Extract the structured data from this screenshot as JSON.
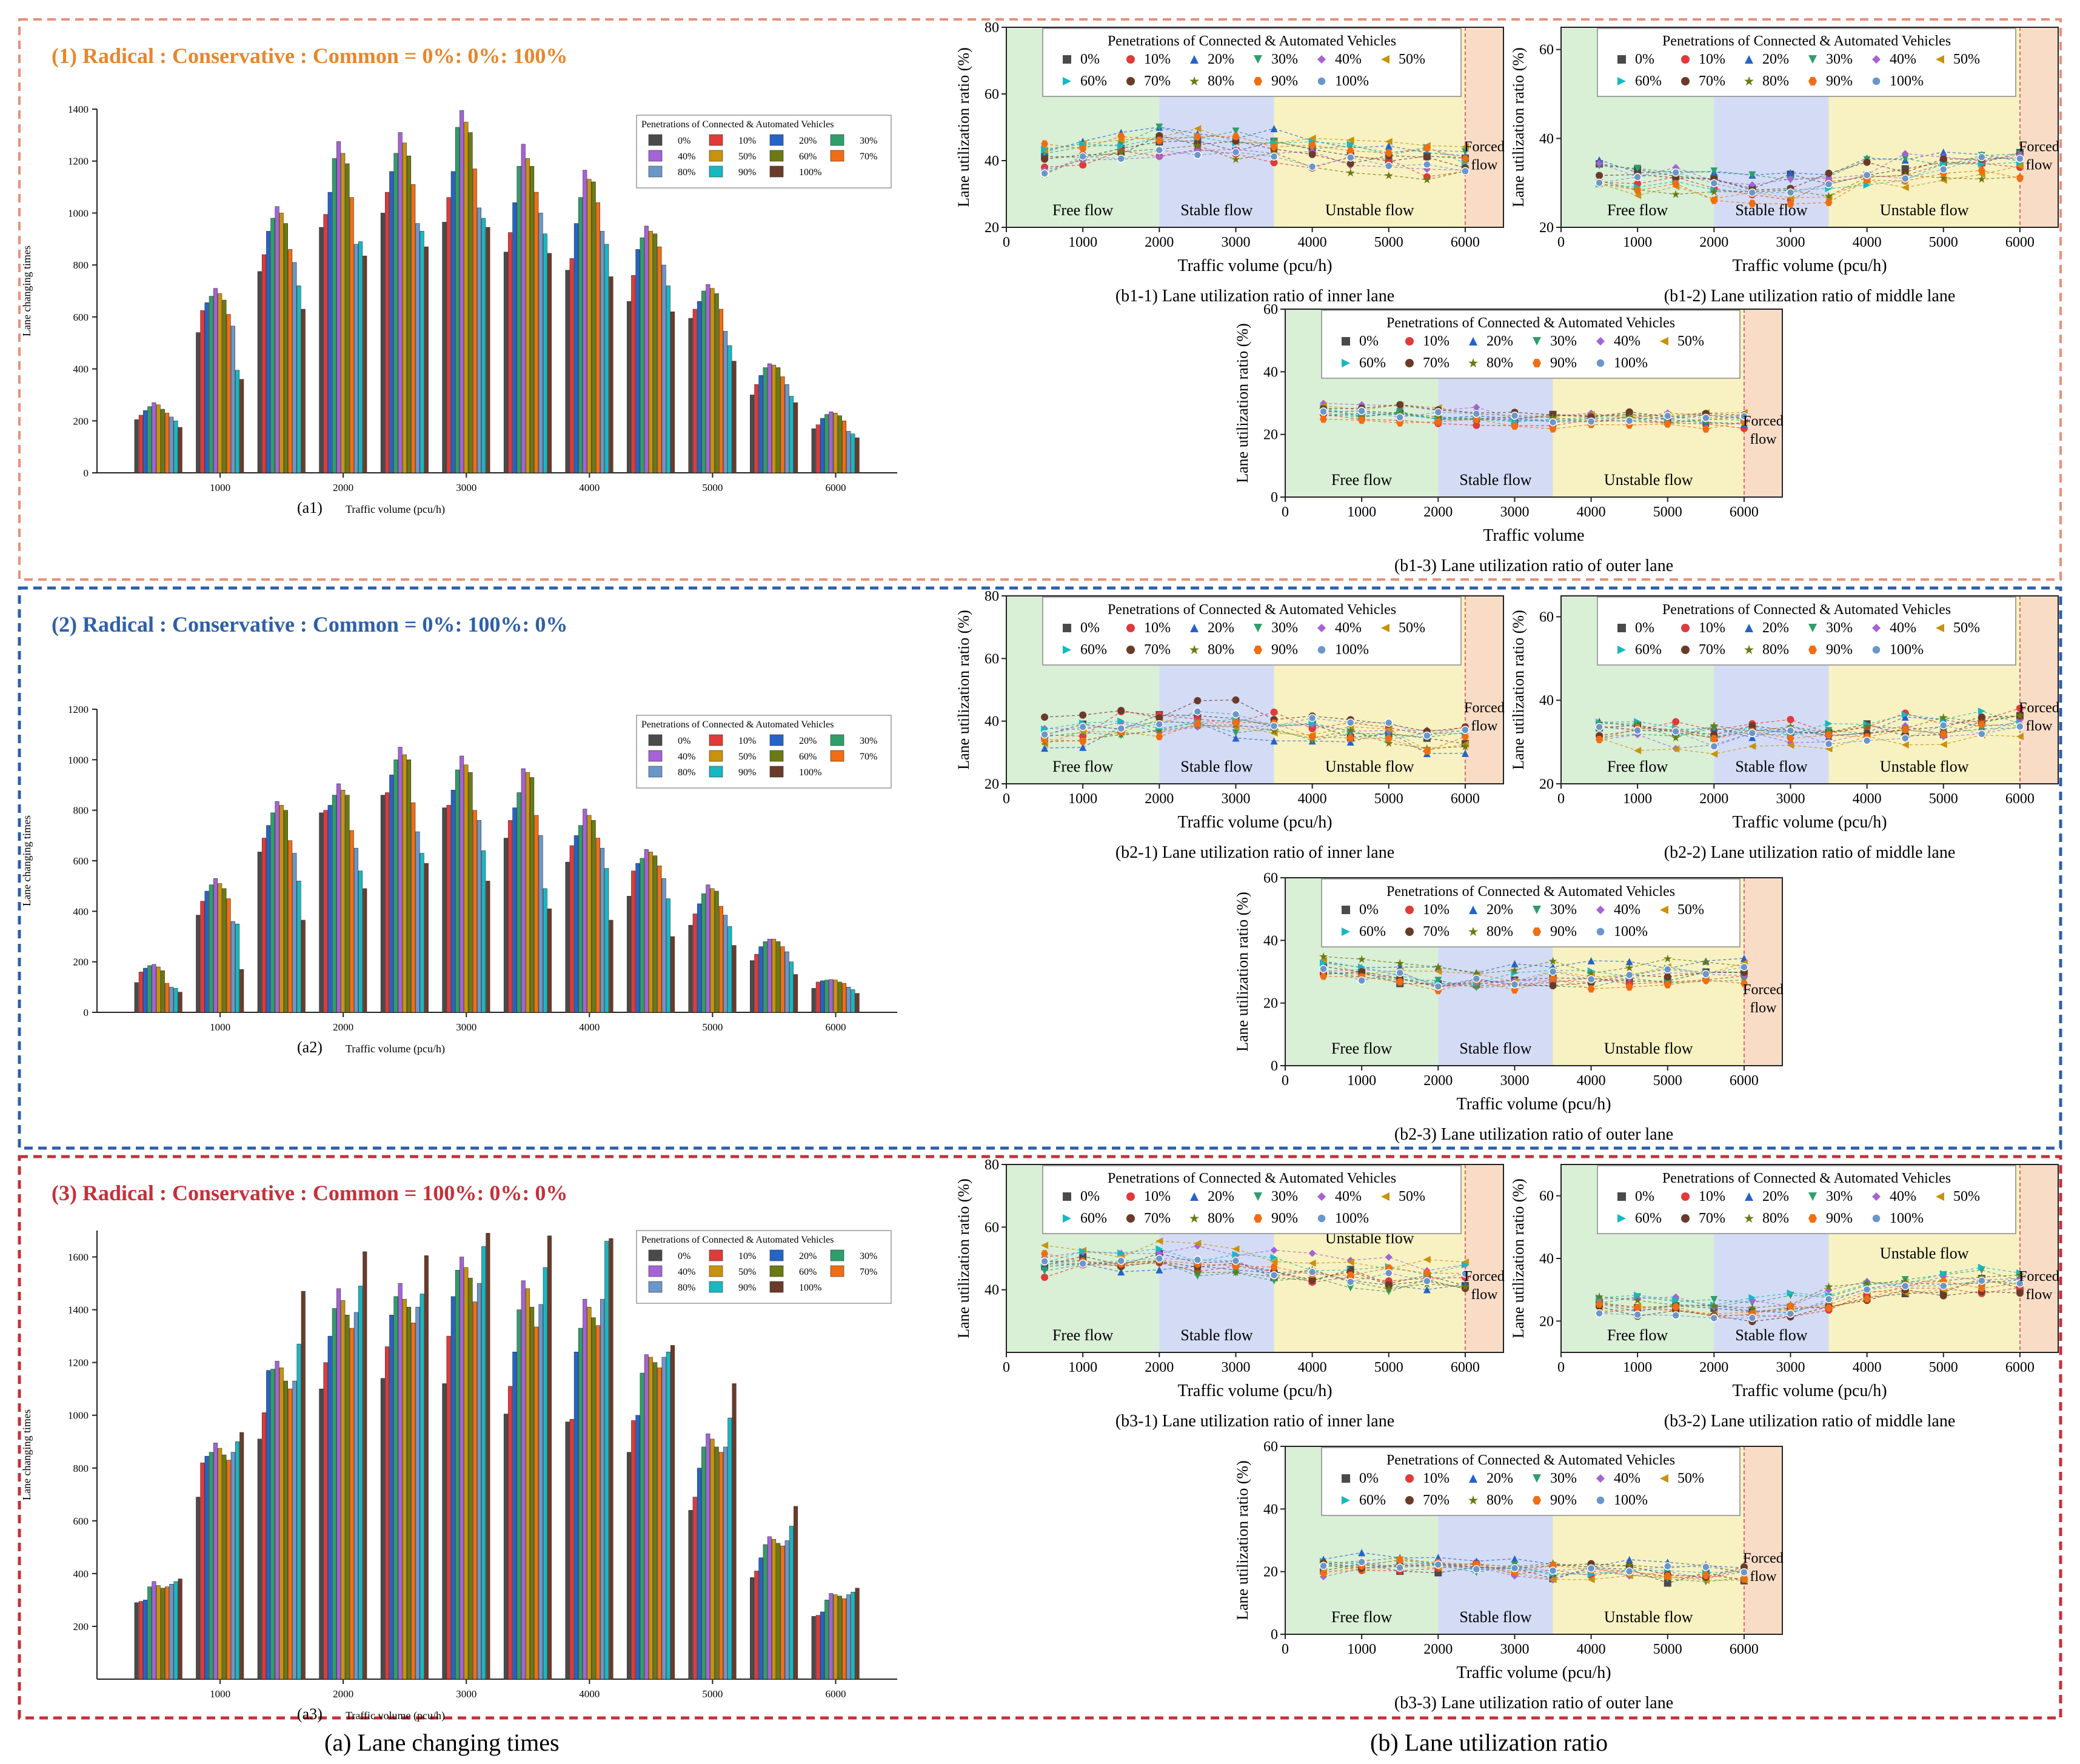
{
  "colors": {
    "series": [
      "#4a4a4a",
      "#e03a3a",
      "#2563c9",
      "#2f9e6b",
      "#a563d6",
      "#c9920c",
      "#6b7a12",
      "#f26d12",
      "#6b96c9",
      "#18b8c2",
      "#6b3b2a"
    ],
    "penetration_order_colors": [
      "#4a4a4a",
      "#e03a3a",
      "#2563c9",
      "#2f9e6b",
      "#a563d6",
      "#c9920c",
      "#18b8c2",
      "#6b3b2a",
      "#6b7a12",
      "#f26d12",
      "#6b96c9"
    ],
    "free_flow": "#d9efd6",
    "stable_flow": "#d4dcf5",
    "unstable_flow": "#f8f2c2",
    "forced_flow": "#f9dcc6",
    "frame1": "#e8907a",
    "frame2": "#2e5fa8",
    "frame3": "#c7303a",
    "title1": "#e8862a",
    "title2": "#2e5fa8",
    "title3": "#c7303a"
  },
  "scenarios": [
    {
      "title": "(1) Radical : Conservative : Common = 0%: 0%: 100%"
    },
    {
      "title": "(2) Radical : Conservative : Common = 0%: 100%: 0%"
    },
    {
      "title": "(3) Radical : Conservative : Common = 100%: 0%: 0%"
    }
  ],
  "bottom_labels": {
    "a": "(a)  Lane changing times",
    "b": "(b)  Lane utilization ratio"
  },
  "flow_labels": {
    "free": "Free flow",
    "stable": "Stable flow",
    "unstable": "Unstable flow",
    "forced_1": "Forced",
    "forced_2": "flow"
  },
  "chart_data": [
    {
      "id": "a1",
      "type": "bar",
      "caption": "(a1)",
      "xlabel": "Traffic volume (pcu/h)",
      "ylabel": "Lane changing times",
      "ylim": [
        0,
        1400
      ],
      "yticks": [
        0,
        200,
        400,
        600,
        800,
        1000,
        1200,
        1400
      ],
      "xticks": [
        1000,
        2000,
        3000,
        4000,
        5000,
        6000
      ],
      "categories": [
        500,
        1000,
        1500,
        2000,
        2500,
        3000,
        3500,
        4000,
        4500,
        5000,
        5500,
        6000
      ],
      "legend_title": "Penetrations of Connected & Automated Vehicles",
      "series_names": [
        "0%",
        "10%",
        "20%",
        "30%",
        "40%",
        "50%",
        "60%",
        "70%",
        "80%",
        "90%",
        "100%"
      ],
      "values": [
        [
          205,
          222,
          240,
          255,
          270,
          262,
          245,
          230,
          215,
          200,
          175
        ],
        [
          540,
          625,
          655,
          680,
          710,
          690,
          665,
          610,
          565,
          395,
          360
        ],
        [
          775,
          840,
          930,
          980,
          1025,
          1000,
          960,
          860,
          810,
          720,
          630
        ],
        [
          945,
          995,
          1080,
          1210,
          1275,
          1230,
          1190,
          1060,
          880,
          890,
          835
        ],
        [
          1000,
          1080,
          1160,
          1230,
          1310,
          1270,
          1220,
          1110,
          960,
          930,
          870
        ],
        [
          965,
          1060,
          1160,
          1330,
          1395,
          1350,
          1310,
          1170,
          1020,
          980,
          945
        ],
        [
          850,
          925,
          1040,
          1180,
          1265,
          1210,
          1180,
          1080,
          1000,
          920,
          845
        ],
        [
          780,
          825,
          960,
          1060,
          1165,
          1130,
          1120,
          1040,
          930,
          880,
          755
        ],
        [
          660,
          760,
          860,
          905,
          950,
          930,
          920,
          870,
          800,
          720,
          620
        ],
        [
          595,
          630,
          660,
          700,
          725,
          710,
          690,
          630,
          545,
          490,
          430
        ],
        [
          300,
          340,
          375,
          405,
          420,
          415,
          405,
          370,
          340,
          295,
          270
        ],
        [
          170,
          185,
          210,
          225,
          235,
          230,
          220,
          200,
          160,
          150,
          135
        ]
      ]
    },
    {
      "id": "a2",
      "type": "bar",
      "caption": "(a2)",
      "xlabel": "Traffic volume (pcu/h)",
      "ylabel": "Lane changing times",
      "ylim": [
        0,
        1200
      ],
      "yticks": [
        0,
        200,
        400,
        600,
        800,
        1000,
        1200
      ],
      "xticks": [
        1000,
        2000,
        3000,
        4000,
        5000,
        6000
      ],
      "categories": [
        500,
        1000,
        1500,
        2000,
        2500,
        3000,
        3500,
        4000,
        4500,
        5000,
        5500,
        6000
      ],
      "legend_title": "Penetrations of Connected & Automated Vehicles",
      "series_names": [
        "0%",
        "10%",
        "20%",
        "30%",
        "40%",
        "50%",
        "60%",
        "70%",
        "80%",
        "90%",
        "100%"
      ],
      "values": [
        [
          118,
          160,
          175,
          185,
          190,
          180,
          165,
          115,
          100,
          95,
          80
        ],
        [
          385,
          440,
          480,
          505,
          530,
          510,
          490,
          450,
          360,
          350,
          170
        ],
        [
          635,
          690,
          740,
          790,
          835,
          820,
          800,
          680,
          630,
          520,
          365
        ],
        [
          790,
          800,
          820,
          860,
          905,
          880,
          860,
          720,
          650,
          560,
          490
        ],
        [
          860,
          870,
          940,
          1000,
          1050,
          1020,
          1000,
          830,
          715,
          630,
          590
        ],
        [
          810,
          820,
          880,
          960,
          1015,
          980,
          950,
          800,
          760,
          640,
          520
        ],
        [
          690,
          760,
          810,
          870,
          965,
          950,
          930,
          780,
          700,
          490,
          410
        ],
        [
          595,
          660,
          700,
          740,
          805,
          780,
          760,
          690,
          650,
          570,
          365
        ],
        [
          460,
          560,
          590,
          610,
          645,
          635,
          620,
          580,
          530,
          450,
          300
        ],
        [
          345,
          390,
          430,
          470,
          505,
          490,
          480,
          420,
          385,
          340,
          265
        ],
        [
          205,
          230,
          260,
          280,
          290,
          290,
          280,
          260,
          240,
          200,
          150
        ],
        [
          95,
          120,
          125,
          128,
          130,
          128,
          120,
          115,
          100,
          90,
          75
        ]
      ]
    },
    {
      "id": "a3",
      "type": "bar",
      "caption": "(a3)",
      "xlabel": "Traffic volume (pcu/h)",
      "ylabel": "Lane changing times",
      "ylim": [
        0,
        1700
      ],
      "yticks": [
        200,
        400,
        600,
        800,
        1000,
        1200,
        1400,
        1600
      ],
      "xticks": [
        1000,
        2000,
        3000,
        4000,
        5000,
        6000
      ],
      "categories": [
        500,
        1000,
        1500,
        2000,
        2500,
        3000,
        3500,
        4000,
        4500,
        5000,
        5500,
        6000
      ],
      "legend_title": "Penetrations of Connected & Automated Vehicles",
      "series_names": [
        "0%",
        "10%",
        "20%",
        "30%",
        "40%",
        "50%",
        "60%",
        "70%",
        "80%",
        "90%",
        "100%"
      ],
      "values": [
        [
          290,
          295,
          300,
          350,
          370,
          355,
          345,
          350,
          360,
          370,
          380
        ],
        [
          690,
          820,
          845,
          860,
          895,
          875,
          850,
          830,
          860,
          900,
          935
        ],
        [
          910,
          1010,
          1170,
          1175,
          1205,
          1180,
          1130,
          1100,
          1130,
          1270,
          1470
        ],
        [
          1100,
          1200,
          1300,
          1405,
          1480,
          1435,
          1380,
          1330,
          1390,
          1490,
          1620
        ],
        [
          1140,
          1260,
          1380,
          1450,
          1500,
          1440,
          1410,
          1350,
          1410,
          1460,
          1605
        ],
        [
          1120,
          1300,
          1450,
          1550,
          1600,
          1560,
          1520,
          1430,
          1500,
          1640,
          1690
        ],
        [
          1005,
          1110,
          1240,
          1400,
          1510,
          1480,
          1410,
          1335,
          1420,
          1560,
          1680
        ],
        [
          975,
          985,
          1240,
          1330,
          1440,
          1410,
          1370,
          1340,
          1440,
          1660,
          1670
        ],
        [
          860,
          980,
          1000,
          1160,
          1230,
          1220,
          1200,
          1180,
          1220,
          1240,
          1265
        ],
        [
          640,
          690,
          800,
          880,
          930,
          910,
          880,
          860,
          880,
          990,
          1120
        ],
        [
          385,
          410,
          460,
          510,
          540,
          530,
          515,
          505,
          525,
          580,
          655
        ],
        [
          238,
          242,
          255,
          300,
          325,
          320,
          315,
          305,
          320,
          330,
          345
        ]
      ]
    },
    {
      "id": "b1-1",
      "type": "scatter",
      "caption": "(b1-1)  Lane utilization ratio of inner lane",
      "xlabel": "Traffic volume (pcu/h)",
      "ylabel": "Lane utilization ratio (%)",
      "xlim": [
        0,
        6500
      ],
      "ylim": [
        20,
        80
      ],
      "yticks": [
        20,
        40,
        60,
        80
      ],
      "xticks": [
        0,
        1000,
        2000,
        3000,
        4000,
        5000,
        6000
      ],
      "mean": [
        41,
        43,
        45,
        46,
        46,
        45,
        44,
        43,
        42,
        41,
        40,
        40
      ],
      "spread": 5,
      "bands": true,
      "zone_label_y": "bottom"
    },
    {
      "id": "b1-2",
      "type": "scatter",
      "caption": "(b1-2)  Lane utilization ratio of middle lane",
      "xlabel": "Traffic volume (pcu/h)",
      "ylabel": "Lane utilization ratio (%)",
      "xlim": [
        0,
        6500
      ],
      "ylim": [
        20,
        65
      ],
      "yticks": [
        20,
        40,
        60
      ],
      "xticks": [
        0,
        1000,
        2000,
        3000,
        4000,
        5000,
        6000
      ],
      "mean": [
        31,
        30,
        30,
        29,
        28,
        28,
        29,
        31,
        32,
        33,
        34,
        34
      ],
      "spread": 4,
      "bands": true,
      "zone_label_y": "bottom"
    },
    {
      "id": "b1-3",
      "type": "scatter",
      "caption": "(b1-3)  Lane utilization ratio of outer lane",
      "xlabel": "Traffic volume",
      "ylabel": "Lane utilization ratio (%)",
      "xlim": [
        0,
        6500
      ],
      "ylim": [
        0,
        60
      ],
      "yticks": [
        0,
        20,
        40,
        60
      ],
      "xticks": [
        0,
        1000,
        2000,
        3000,
        4000,
        5000,
        6000
      ],
      "mean": [
        27,
        27,
        27,
        26,
        26,
        25,
        25,
        25,
        25,
        25,
        25,
        25
      ],
      "spread": 3,
      "bands": true,
      "zone_label_y": "bottom"
    },
    {
      "id": "b2-1",
      "type": "scatter",
      "caption": "(b2-1)  Lane utilization ratio of inner lane",
      "xlabel": "Traffic volume (pcu/h)",
      "ylabel": "Lane utilization ratio (%)",
      "xlim": [
        0,
        6500
      ],
      "ylim": [
        20,
        80
      ],
      "yticks": [
        20,
        40,
        60,
        80
      ],
      "xticks": [
        0,
        1000,
        2000,
        3000,
        4000,
        5000,
        6000
      ],
      "mean": [
        37,
        38,
        40,
        41,
        42,
        41,
        40,
        39,
        38,
        37,
        36,
        36
      ],
      "spread": 6,
      "bands": true,
      "zone_label_y": "bottom"
    },
    {
      "id": "b2-2",
      "type": "scatter",
      "caption": "(b2-2)  Lane utilization ratio of middle lane",
      "xlabel": "Traffic volume (pcu/h)",
      "ylabel": "Lane utilization ratio (%)",
      "xlim": [
        0,
        6500
      ],
      "ylim": [
        20,
        65
      ],
      "yticks": [
        20,
        40,
        60
      ],
      "xticks": [
        0,
        1000,
        2000,
        3000,
        4000,
        5000,
        6000
      ],
      "mean": [
        32,
        32,
        31,
        31,
        31,
        31,
        31,
        32,
        33,
        33,
        34,
        34
      ],
      "spread": 4,
      "bands": true,
      "zone_label_y": "bottom"
    },
    {
      "id": "b2-3",
      "type": "scatter",
      "caption": "(b2-3)  Lane utilization ratio of outer lane",
      "xlabel": "Traffic volume (pcu/h)",
      "ylabel": "Lane utilization ratio (%)",
      "xlim": [
        0,
        6500
      ],
      "ylim": [
        0,
        60
      ],
      "yticks": [
        0,
        20,
        40,
        60
      ],
      "xticks": [
        0,
        1000,
        2000,
        3000,
        4000,
        5000,
        6000
      ],
      "mean": [
        31,
        30,
        29,
        28,
        28,
        28,
        29,
        29,
        29,
        30,
        30,
        31
      ],
      "spread": 4,
      "bands": true,
      "zone_label_y": "bottom"
    },
    {
      "id": "b3-1",
      "type": "scatter",
      "caption": "(b3-1)  Lane utilization ratio of inner lane",
      "xlabel": "Traffic volume (pcu/h)",
      "ylabel": "Lane utilization ratio (%)",
      "xlim": [
        0,
        6500
      ],
      "ylim": [
        20,
        80
      ],
      "yticks": [
        40,
        60,
        80
      ],
      "xticks": [
        0,
        1000,
        2000,
        3000,
        4000,
        5000,
        6000
      ],
      "mean": [
        49,
        50,
        50,
        51,
        50,
        49,
        48,
        47,
        46,
        45,
        45,
        45
      ],
      "spread": 5,
      "bands": true,
      "zone_label_y": "mixed"
    },
    {
      "id": "b3-2",
      "type": "scatter",
      "caption": "(b3-2)  Lane utilization ratio of middle lane",
      "xlabel": "Traffic volume (pcu/h)",
      "ylabel": "Lane utilization ratio (%)",
      "xlim": [
        0,
        6500
      ],
      "ylim": [
        10,
        70
      ],
      "yticks": [
        20,
        40,
        60
      ],
      "xticks": [
        0,
        1000,
        2000,
        3000,
        4000,
        5000,
        6000
      ],
      "mean": [
        26,
        25,
        25,
        24,
        24,
        25,
        27,
        30,
        31,
        32,
        33,
        33
      ],
      "spread": 4,
      "bands": true,
      "zone_label_y": "top"
    },
    {
      "id": "b3-3",
      "type": "scatter",
      "caption": "(b3-3)  Lane utilization ratio of outer lane",
      "xlabel": "Traffic volume (pcu/h)",
      "ylabel": "Lane utilization ratio (%)",
      "xlim": [
        0,
        6500
      ],
      "ylim": [
        0,
        60
      ],
      "yticks": [
        0,
        20,
        40,
        60
      ],
      "xticks": [
        0,
        1000,
        2000,
        3000,
        4000,
        5000,
        6000
      ],
      "mean": [
        23,
        24,
        24,
        24,
        23,
        23,
        22,
        22,
        22,
        21,
        21,
        21
      ],
      "spread": 4,
      "bands": true,
      "zone_label_y": "bottom"
    }
  ],
  "scatter_legend_title": "Penetrations of Connected & Automated Vehicles",
  "scatter_series_names": [
    "0%",
    "10%",
    "20%",
    "30%",
    "40%",
    "50%",
    "60%",
    "70%",
    "80%",
    "90%",
    "100%"
  ],
  "scatter_markers": [
    "square",
    "circle",
    "triangle-up",
    "triangle-down",
    "diamond",
    "triangle-left",
    "triangle-right",
    "circle",
    "star",
    "hexagon",
    "circle-dot"
  ]
}
